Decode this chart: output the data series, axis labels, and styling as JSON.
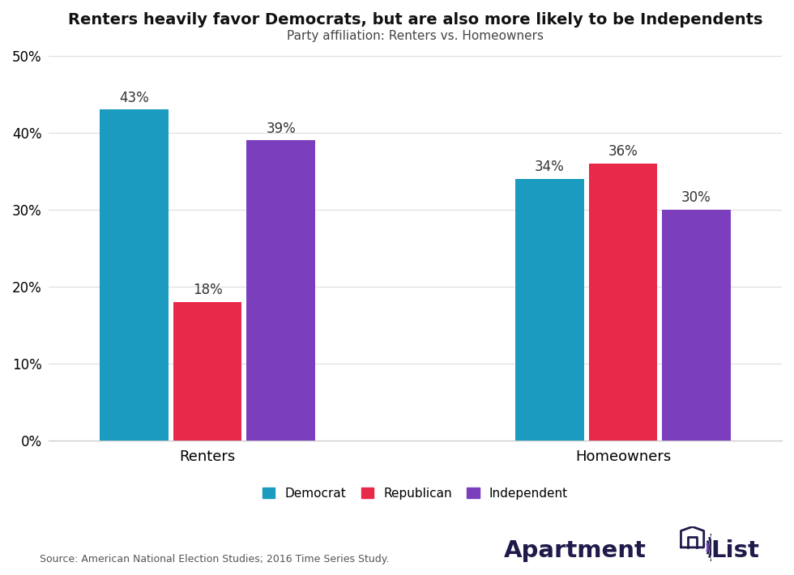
{
  "title": "Renters heavily favor Democrats, but are also more likely to be Independents",
  "subtitle": "Party affiliation: Renters vs. Homeowners",
  "groups": [
    "Renters",
    "Homeowners"
  ],
  "parties": [
    "Democrat",
    "Republican",
    "Independent"
  ],
  "values": {
    "Renters": [
      43,
      18,
      39
    ],
    "Homeowners": [
      34,
      36,
      30
    ]
  },
  "colors": {
    "Democrat": "#1a9bbf",
    "Republican": "#e8294a",
    "Independent": "#7b3fbe"
  },
  "ylim": [
    0,
    50
  ],
  "yticks": [
    0,
    10,
    20,
    30,
    40,
    50
  ],
  "bar_width": 0.28,
  "source_text": "Source: American National Election Studies; 2016 Time Series Study.",
  "background_color": "#ffffff",
  "title_fontsize": 14,
  "subtitle_fontsize": 11,
  "label_fontsize": 12,
  "tick_fontsize": 12,
  "legend_fontsize": 11,
  "group_centers": [
    1.15,
    2.85
  ],
  "group_labels": [
    "Renters",
    "Homeowners"
  ],
  "logo_color_dark": "#1e1b4b",
  "logo_color_purple": "#7b3fbe"
}
